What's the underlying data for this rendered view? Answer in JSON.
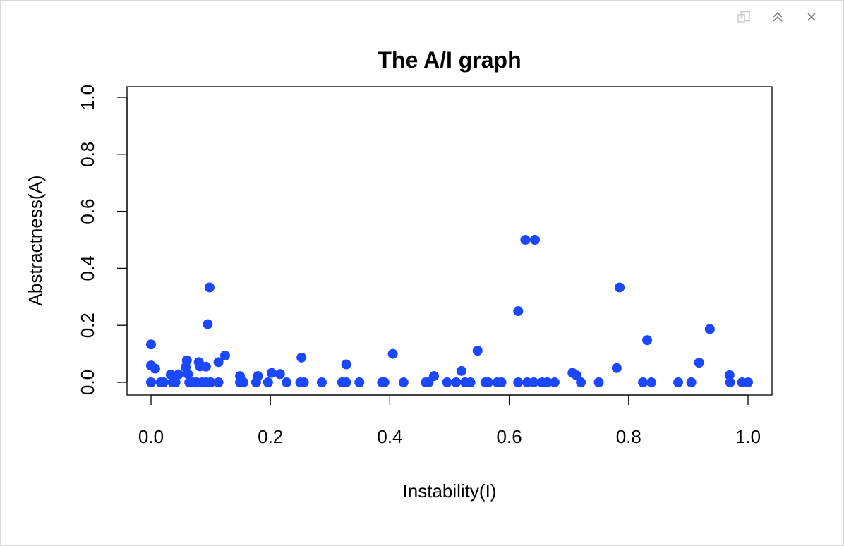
{
  "window": {
    "controls": [
      {
        "name": "popout-icon"
      },
      {
        "name": "maximize-icon"
      },
      {
        "name": "close-icon"
      }
    ]
  },
  "chart_data": {
    "type": "scatter",
    "title": "The A/I graph",
    "xlabel": "Instability(I)",
    "ylabel": "Abstractness(A)",
    "xlim": [
      0,
      1
    ],
    "ylim": [
      0,
      1
    ],
    "xticks": [
      "0.0",
      "0.2",
      "0.4",
      "0.6",
      "0.8",
      "1.0"
    ],
    "yticks": [
      "0.0",
      "0.2",
      "0.4",
      "0.6",
      "0.8",
      "1.0"
    ],
    "grid": false,
    "point_color": "#1a47ff",
    "points": [
      [
        0.0,
        0.133
      ],
      [
        0.0,
        0.059
      ],
      [
        0.007,
        0.048
      ],
      [
        0.0,
        0.0
      ],
      [
        0.016,
        0.0
      ],
      [
        0.021,
        0.0
      ],
      [
        0.033,
        0.027
      ],
      [
        0.036,
        0.0
      ],
      [
        0.039,
        0.008
      ],
      [
        0.041,
        0.0
      ],
      [
        0.046,
        0.028
      ],
      [
        0.058,
        0.053
      ],
      [
        0.06,
        0.077
      ],
      [
        0.062,
        0.029
      ],
      [
        0.064,
        0.0
      ],
      [
        0.07,
        0.0
      ],
      [
        0.076,
        0.0
      ],
      [
        0.08,
        0.071
      ],
      [
        0.082,
        0.056
      ],
      [
        0.086,
        0.0
      ],
      [
        0.092,
        0.055
      ],
      [
        0.095,
        0.204
      ],
      [
        0.093,
        0.0
      ],
      [
        0.098,
        0.333
      ],
      [
        0.1,
        0.0
      ],
      [
        0.113,
        0.071
      ],
      [
        0.113,
        0.0
      ],
      [
        0.124,
        0.094
      ],
      [
        0.149,
        0.022
      ],
      [
        0.149,
        0.0
      ],
      [
        0.155,
        0.0
      ],
      [
        0.176,
        0.0
      ],
      [
        0.179,
        0.022
      ],
      [
        0.196,
        0.0
      ],
      [
        0.202,
        0.033
      ],
      [
        0.216,
        0.029
      ],
      [
        0.227,
        0.0
      ],
      [
        0.25,
        0.0
      ],
      [
        0.252,
        0.087
      ],
      [
        0.256,
        0.0
      ],
      [
        0.286,
        0.0
      ],
      [
        0.32,
        0.0
      ],
      [
        0.327,
        0.063
      ],
      [
        0.327,
        0.0
      ],
      [
        0.349,
        0.0
      ],
      [
        0.387,
        0.0
      ],
      [
        0.391,
        0.0
      ],
      [
        0.405,
        0.1
      ],
      [
        0.423,
        0.0
      ],
      [
        0.46,
        0.0
      ],
      [
        0.465,
        0.0
      ],
      [
        0.474,
        0.022
      ],
      [
        0.496,
        0.0
      ],
      [
        0.511,
        0.0
      ],
      [
        0.52,
        0.04
      ],
      [
        0.526,
        0.0
      ],
      [
        0.535,
        0.0
      ],
      [
        0.547,
        0.111
      ],
      [
        0.56,
        0.0
      ],
      [
        0.565,
        0.0
      ],
      [
        0.58,
        0.0
      ],
      [
        0.587,
        0.0
      ],
      [
        0.615,
        0.25
      ],
      [
        0.615,
        0.0
      ],
      [
        0.627,
        0.5
      ],
      [
        0.63,
        0.0
      ],
      [
        0.643,
        0.5
      ],
      [
        0.641,
        0.0
      ],
      [
        0.655,
        0.0
      ],
      [
        0.664,
        0.0
      ],
      [
        0.676,
        0.0
      ],
      [
        0.706,
        0.033
      ],
      [
        0.713,
        0.024
      ],
      [
        0.72,
        0.0
      ],
      [
        0.75,
        0.0
      ],
      [
        0.78,
        0.05
      ],
      [
        0.785,
        0.333
      ],
      [
        0.824,
        0.0
      ],
      [
        0.831,
        0.148
      ],
      [
        0.838,
        0.0
      ],
      [
        0.883,
        0.0
      ],
      [
        0.905,
        0.0
      ],
      [
        0.918,
        0.069
      ],
      [
        0.936,
        0.187
      ],
      [
        0.969,
        0.025
      ],
      [
        0.97,
        0.0
      ],
      [
        0.99,
        0.0
      ],
      [
        1.0,
        0.0
      ]
    ]
  }
}
